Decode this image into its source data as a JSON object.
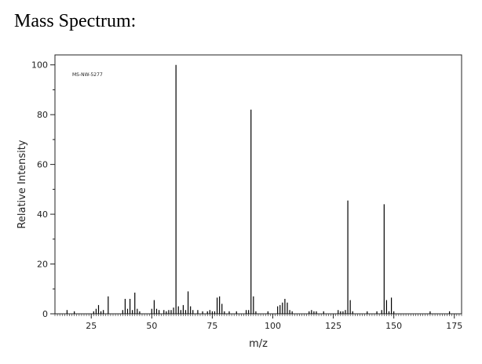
{
  "page": {
    "heading": "Mass Spectrum:"
  },
  "chart_data": {
    "type": "bar",
    "title": "",
    "annotation": "MS-NW-5277",
    "xlabel": "m/z",
    "ylabel": "Relative Intensity",
    "xlim": [
      10,
      178
    ],
    "ylim": [
      0,
      104
    ],
    "xticks": [
      25,
      50,
      75,
      100,
      125,
      150,
      175
    ],
    "yticks": [
      0,
      20,
      40,
      60,
      80,
      100
    ],
    "grid": false,
    "color": "#000000",
    "series": [
      {
        "mz": [
          15,
          18,
          26,
          27,
          28,
          29,
          30,
          32,
          38,
          39,
          40,
          41,
          42,
          43,
          44,
          45,
          50,
          51,
          52,
          53,
          55,
          56,
          57,
          58,
          59,
          60,
          61,
          62,
          63,
          64,
          65,
          66,
          67,
          69,
          71,
          73,
          74,
          75,
          76,
          77,
          78,
          79,
          80,
          82,
          85,
          89,
          90,
          91,
          92,
          93,
          98,
          102,
          103,
          104,
          105,
          106,
          107,
          108,
          115,
          116,
          117,
          118,
          121,
          127,
          128,
          129,
          130,
          131,
          132,
          133,
          139,
          143,
          145,
          146,
          147,
          148,
          149,
          150,
          165,
          173
        ],
        "intensity": [
          1.5,
          1.0,
          1.0,
          2.0,
          3.5,
          1.0,
          1.5,
          7.0,
          1.5,
          6.0,
          2.0,
          6.0,
          1.5,
          8.5,
          2.0,
          1.0,
          2.0,
          5.5,
          2.0,
          1.5,
          1.5,
          1.0,
          1.5,
          1.5,
          2.5,
          100,
          3.0,
          1.5,
          3.5,
          1.5,
          9.0,
          3.0,
          1.5,
          1.5,
          1.0,
          1.0,
          1.5,
          1.0,
          1.0,
          6.5,
          7.0,
          4.0,
          1.0,
          1.0,
          1.0,
          1.5,
          1.5,
          82,
          7.0,
          1.0,
          1.0,
          3.0,
          3.5,
          4.5,
          6.0,
          4.5,
          1.5,
          1.0,
          1.0,
          1.5,
          1.0,
          1.0,
          1.0,
          1.5,
          1.0,
          1.0,
          1.5,
          45.5,
          5.5,
          1.0,
          1.0,
          1.0,
          1.5,
          44,
          5.5,
          1.0,
          6.5,
          1.0,
          1.0,
          1.0
        ]
      }
    ]
  }
}
